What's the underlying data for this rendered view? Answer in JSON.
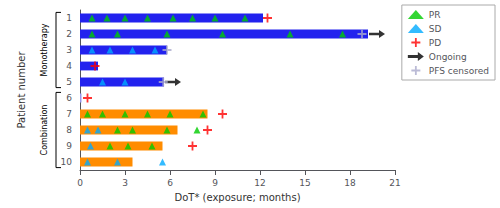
{
  "chart_data": {
    "type": "bar",
    "orientation": "horizontal",
    "xlabel": "DoT* (exposure; months)",
    "ylabel": "Patient number",
    "categories": [
      1,
      2,
      3,
      4,
      5,
      6,
      7,
      8,
      9,
      10
    ],
    "values": [
      12.2,
      19.2,
      5.8,
      1.2,
      5.6,
      0.1,
      8.5,
      6.5,
      5.5,
      3.5
    ],
    "colors": [
      "#2222ee",
      "#2222ee",
      "#2222ee",
      "#2222ee",
      "#2222ee",
      "#9999ee",
      "#ff8c00",
      "#ff8c00",
      "#ff8c00",
      "#ff8c00"
    ],
    "xlim": [
      0,
      21
    ],
    "xticks": [
      0,
      3,
      6,
      9,
      12,
      15,
      18,
      21
    ],
    "grid": false,
    "legend": "upper right",
    "series": [
      {
        "name": "PR",
        "type": "scatter",
        "marker": "triangle",
        "color": "#00cc00",
        "x": [
          0.8,
          1.8,
          3.0,
          4.5,
          6.2,
          7.5,
          9.0,
          11.0,
          0.8,
          2.5,
          5.8,
          9.5,
          14.0,
          17.5,
          0.5,
          1.5,
          3.0,
          4.5,
          6.0,
          8.2,
          2.5,
          3.5,
          5.8,
          7.8,
          2.0,
          3.2,
          4.8
        ],
        "y": [
          1,
          1,
          1,
          1,
          1,
          1,
          1,
          1,
          2,
          2,
          2,
          2,
          2,
          2,
          7,
          7,
          7,
          7,
          7,
          7,
          8,
          8,
          8,
          8,
          9,
          9,
          9
        ]
      },
      {
        "name": "SD",
        "type": "scatter",
        "marker": "triangle",
        "color": "#00aaff",
        "x": [
          0.8,
          2.0,
          3.5,
          5.0,
          1.5,
          3.0,
          0.5,
          1.2,
          0.7,
          0.5,
          2.5,
          5.5
        ],
        "y": [
          3,
          3,
          3,
          3,
          5,
          5,
          8,
          8,
          9,
          10,
          10,
          10
        ]
      },
      {
        "name": "PD",
        "type": "scatter",
        "marker": "plus",
        "color": "#ff0000",
        "x": [
          12.5,
          1.0,
          0.5,
          9.5,
          8.5,
          7.5
        ],
        "y": [
          1,
          4,
          6,
          7,
          8,
          9
        ]
      },
      {
        "name": "Ongoing",
        "type": "scatter",
        "marker": "arrow",
        "color": "#000000",
        "x": [
          19.2,
          5.6
        ],
        "y": [
          2,
          5
        ]
      },
      {
        "name": "PFS censored",
        "type": "scatter",
        "marker": "plus",
        "color": "#aaaacc",
        "x": [
          18.8,
          5.8,
          5.55
        ],
        "y": [
          2,
          3,
          5
        ]
      }
    ],
    "annotations": [
      {
        "text": "Monotherapy",
        "from": 1,
        "to": 5
      },
      {
        "text": "Combination",
        "from": 6,
        "to": 10
      }
    ]
  }
}
